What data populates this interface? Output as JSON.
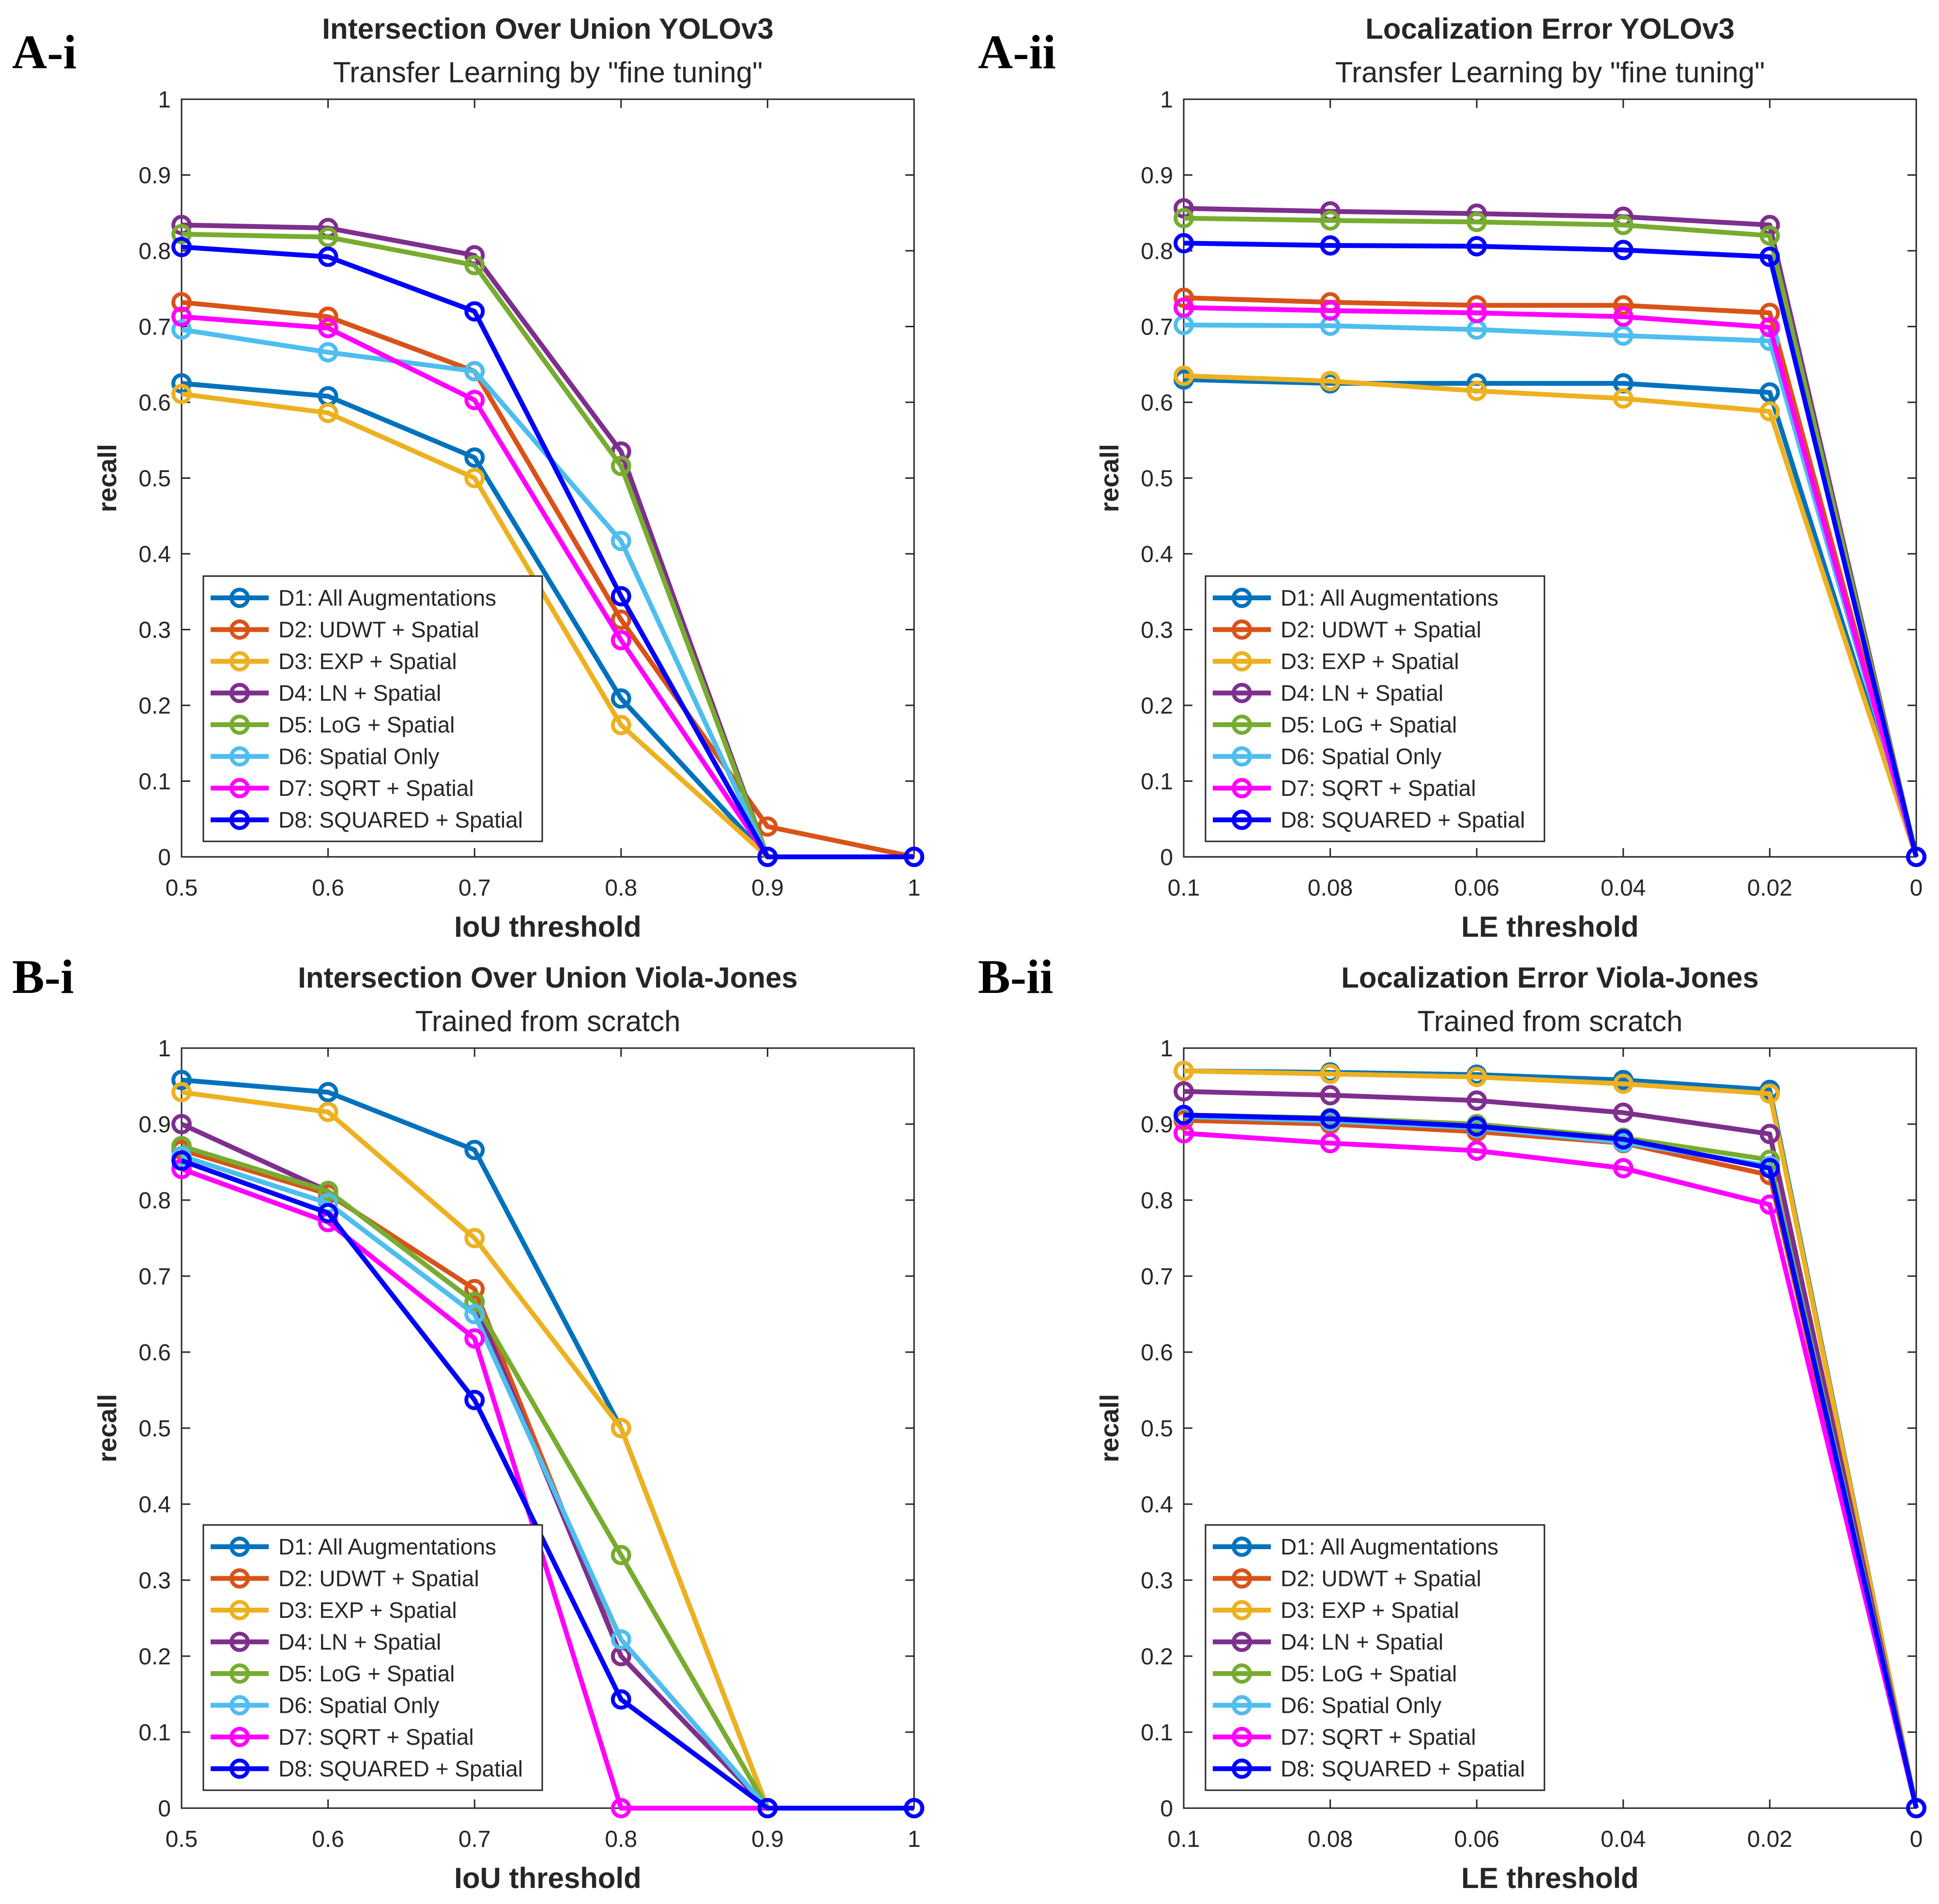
{
  "legend_entries": [
    "D1: All Augmentations",
    "D2: UDWT + Spatial",
    "D3: EXP + Spatial",
    "D4: LN + Spatial",
    "D5: LoG + Spatial",
    "D6: Spatial Only",
    "D7: SQRT + Spatial",
    "D8: SQUARED + Spatial"
  ],
  "colors": [
    "#0072BD",
    "#D95319",
    "#EDB120",
    "#7E2F8E",
    "#77AC30",
    "#4DBEEE",
    "#FF00FF",
    "#0000FF"
  ],
  "chart_data": [
    {
      "panel_label": "A-i",
      "type": "line",
      "title": "Intersection Over Union YOLOv3",
      "subtitle": "Transfer Learning by \"fine tuning\"",
      "xlabel": "IoU threshold",
      "ylabel": "recall",
      "x": [
        0.5,
        0.6,
        0.7,
        0.8,
        0.9,
        1
      ],
      "xticks": [
        "0.5",
        "0.6",
        "0.7",
        "0.8",
        "0.9",
        "1"
      ],
      "xlim": [
        0.5,
        1
      ],
      "ylim": [
        0,
        1
      ],
      "yticks": [
        "0",
        "0.1",
        "0.2",
        "0.3",
        "0.4",
        "0.5",
        "0.6",
        "0.7",
        "0.8",
        "0.9",
        "1"
      ],
      "legend_position": "bottom-left",
      "series": [
        {
          "name": "D1: All Augmentations",
          "values": [
            0.625,
            0.608,
            0.527,
            0.209,
            0.0,
            0.0
          ]
        },
        {
          "name": "D2: UDWT + Spatial",
          "values": [
            0.732,
            0.713,
            0.641,
            0.313,
            0.04,
            0.0
          ]
        },
        {
          "name": "D3: EXP + Spatial",
          "values": [
            0.611,
            0.586,
            0.5,
            0.174,
            0.0,
            0.0
          ]
        },
        {
          "name": "D4: LN + Spatial",
          "values": [
            0.834,
            0.83,
            0.794,
            0.535,
            0.0,
            0.0
          ]
        },
        {
          "name": "D5: LoG + Spatial",
          "values": [
            0.822,
            0.818,
            0.781,
            0.516,
            0.0,
            0.0
          ]
        },
        {
          "name": "D6: Spatial Only",
          "values": [
            0.696,
            0.666,
            0.641,
            0.417,
            0.0,
            0.0
          ]
        },
        {
          "name": "D7: SQRT + Spatial",
          "values": [
            0.713,
            0.698,
            0.603,
            0.286,
            0.0,
            0.0
          ]
        },
        {
          "name": "D8: SQUARED + Spatial",
          "values": [
            0.805,
            0.792,
            0.72,
            0.344,
            0.0,
            0.0
          ]
        }
      ]
    },
    {
      "panel_label": "A-ii",
      "type": "line",
      "title": "Localization Error YOLOv3",
      "subtitle": "Transfer Learning by \"fine tuning\"",
      "xlabel": "LE threshold",
      "ylabel": "recall",
      "x": [
        0.1,
        0.08,
        0.06,
        0.04,
        0.02,
        0
      ],
      "xticks": [
        "0.1",
        "0.08",
        "0.06",
        "0.04",
        "0.02",
        "0"
      ],
      "xlim": [
        0.1,
        0
      ],
      "ylim": [
        0,
        1
      ],
      "yticks": [
        "0",
        "0.1",
        "0.2",
        "0.3",
        "0.4",
        "0.5",
        "0.6",
        "0.7",
        "0.8",
        "0.9",
        "1"
      ],
      "legend_position": "bottom-left",
      "series": [
        {
          "name": "D1: All Augmentations",
          "values": [
            0.63,
            0.625,
            0.625,
            0.625,
            0.613,
            0.0
          ]
        },
        {
          "name": "D2: UDWT + Spatial",
          "values": [
            0.738,
            0.732,
            0.728,
            0.728,
            0.718,
            0.0
          ]
        },
        {
          "name": "D3: EXP + Spatial",
          "values": [
            0.635,
            0.628,
            0.615,
            0.605,
            0.588,
            0.0
          ]
        },
        {
          "name": "D4: LN + Spatial",
          "values": [
            0.856,
            0.852,
            0.849,
            0.845,
            0.834,
            0.0
          ]
        },
        {
          "name": "D5: LoG + Spatial",
          "values": [
            0.843,
            0.84,
            0.838,
            0.834,
            0.82,
            0.0
          ]
        },
        {
          "name": "D6: Spatial Only",
          "values": [
            0.702,
            0.701,
            0.696,
            0.688,
            0.681,
            0.0
          ]
        },
        {
          "name": "D7: SQRT + Spatial",
          "values": [
            0.725,
            0.721,
            0.718,
            0.713,
            0.699,
            0.0
          ]
        },
        {
          "name": "D8: SQUARED + Spatial",
          "values": [
            0.81,
            0.807,
            0.806,
            0.801,
            0.792,
            0.0
          ]
        }
      ]
    },
    {
      "panel_label": "B-i",
      "type": "line",
      "title": "Intersection Over Union Viola-Jones",
      "subtitle": "Trained from scratch",
      "xlabel": "IoU threshold",
      "ylabel": "recall",
      "x": [
        0.5,
        0.6,
        0.7,
        0.8,
        0.9,
        1
      ],
      "xticks": [
        "0.5",
        "0.6",
        "0.7",
        "0.8",
        "0.9",
        "1"
      ],
      "xlim": [
        0.5,
        1
      ],
      "ylim": [
        0,
        1
      ],
      "yticks": [
        "0",
        "0.1",
        "0.2",
        "0.3",
        "0.4",
        "0.5",
        "0.6",
        "0.7",
        "0.8",
        "0.9",
        "1"
      ],
      "legend_position": "bottom-left",
      "series": [
        {
          "name": "D1: All Augmentations",
          "values": [
            0.958,
            0.942,
            0.866,
            0.5,
            0.0,
            0.0
          ]
        },
        {
          "name": "D2: UDWT + Spatial",
          "values": [
            0.866,
            0.808,
            0.683,
            0.2,
            0.0,
            0.0
          ]
        },
        {
          "name": "D3: EXP + Spatial",
          "values": [
            0.942,
            0.916,
            0.75,
            0.5,
            0.0,
            0.0
          ]
        },
        {
          "name": "D4: LN + Spatial",
          "values": [
            0.9,
            0.812,
            0.666,
            0.2,
            0.0,
            0.0
          ]
        },
        {
          "name": "D5: LoG + Spatial",
          "values": [
            0.871,
            0.812,
            0.666,
            0.333,
            0.0,
            0.0
          ]
        },
        {
          "name": "D6: Spatial Only",
          "values": [
            0.858,
            0.796,
            0.65,
            0.222,
            0.0,
            0.0
          ]
        },
        {
          "name": "D7: SQRT + Spatial",
          "values": [
            0.841,
            0.771,
            0.618,
            0.0,
            0.0,
            0.0
          ]
        },
        {
          "name": "D8: SQUARED + Spatial",
          "values": [
            0.852,
            0.783,
            0.537,
            0.143,
            0.0,
            0.0
          ]
        }
      ]
    },
    {
      "panel_label": "B-ii",
      "type": "line",
      "title": "Localization Error Viola-Jones",
      "subtitle": "Trained from scratch",
      "xlabel": "LE threshold",
      "ylabel": "recall",
      "x": [
        0.1,
        0.08,
        0.06,
        0.04,
        0.02,
        0
      ],
      "xticks": [
        "0.1",
        "0.08",
        "0.06",
        "0.04",
        "0.02",
        "0"
      ],
      "xlim": [
        0.1,
        0
      ],
      "ylim": [
        0,
        1
      ],
      "yticks": [
        "0",
        "0.1",
        "0.2",
        "0.3",
        "0.4",
        "0.5",
        "0.6",
        "0.7",
        "0.8",
        "0.9",
        "1"
      ],
      "legend_position": "bottom-left",
      "series": [
        {
          "name": "D1: All Augmentations",
          "values": [
            0.97,
            0.968,
            0.965,
            0.958,
            0.945,
            0.0
          ]
        },
        {
          "name": "D2: UDWT + Spatial",
          "values": [
            0.905,
            0.9,
            0.89,
            0.875,
            0.833,
            0.0
          ]
        },
        {
          "name": "D3: EXP + Spatial",
          "values": [
            0.97,
            0.966,
            0.962,
            0.953,
            0.94,
            0.0
          ]
        },
        {
          "name": "D4: LN + Spatial",
          "values": [
            0.943,
            0.938,
            0.931,
            0.915,
            0.887,
            0.0
          ]
        },
        {
          "name": "D5: LoG + Spatial",
          "values": [
            0.912,
            0.908,
            0.9,
            0.882,
            0.853,
            0.0
          ]
        },
        {
          "name": "D6: Spatial Only",
          "values": [
            0.91,
            0.904,
            0.895,
            0.876,
            0.845,
            0.0
          ]
        },
        {
          "name": "D7: SQRT + Spatial",
          "values": [
            0.888,
            0.875,
            0.865,
            0.842,
            0.794,
            0.0
          ]
        },
        {
          "name": "D8: SQUARED + Spatial",
          "values": [
            0.912,
            0.907,
            0.897,
            0.88,
            0.842,
            0.0
          ]
        }
      ]
    }
  ]
}
